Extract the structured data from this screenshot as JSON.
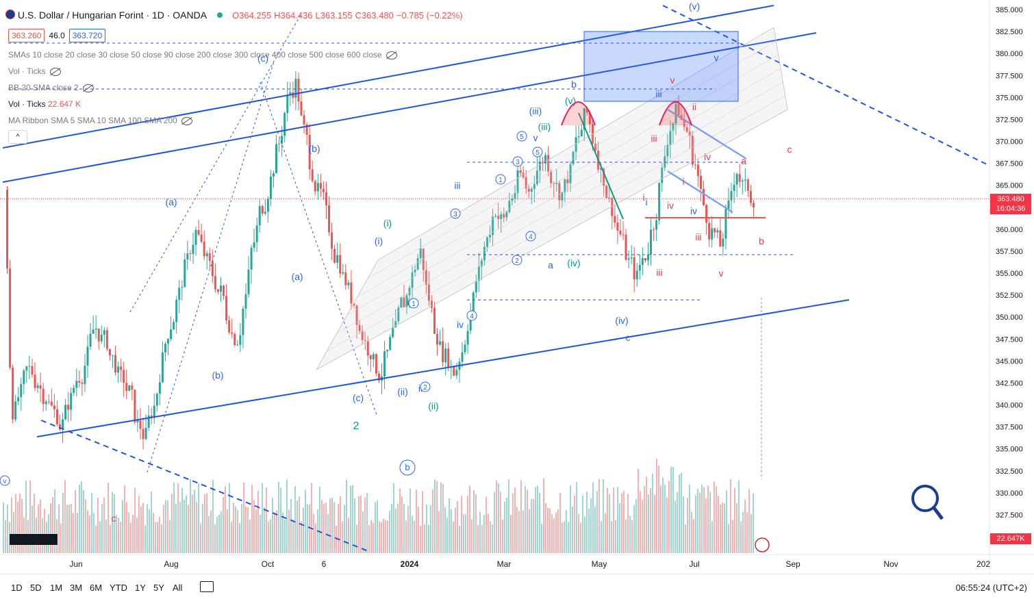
{
  "header": {
    "symbol": "U.S. Dollar / Hungarian Forint · 1D · OANDA",
    "open": "O364.255",
    "high": "H364.436",
    "low": "L363.155",
    "close": "C363.480",
    "change": "−0.785 (−0.22%)",
    "sell": "363.260",
    "spread": "46.0",
    "buy": "363.720"
  },
  "indicators": [
    "SMAs 10 close 20 close 30 close 50 close 90 close 200 close 300 close 400 close 500 close 600 close",
    "Vol · Ticks",
    "BB 20 SMA close 2",
    "Vol · Ticks",
    "MA Ribbon SMA 5 SMA 10 SMA 100 SMA 200"
  ],
  "vol_value": "22.647 K",
  "collapse_label": "^",
  "price_axis": [
    "385.000",
    "382.500",
    "380.000",
    "377.500",
    "375.000",
    "372.500",
    "370.000",
    "367.500",
    "365.000",
    "362.500",
    "360.000",
    "357.500",
    "355.000",
    "352.500",
    "350.000",
    "347.500",
    "345.000",
    "342.500",
    "340.000",
    "337.500",
    "335.000",
    "332.500",
    "330.000",
    "327.500"
  ],
  "current_price": "363.480",
  "countdown": "16:04:36",
  "vol_label": "22.647K",
  "time_axis": [
    "Jun",
    "Aug",
    "Oct",
    "6",
    "2024",
    "Mar",
    "May",
    "Jul",
    "Sep",
    "Nov",
    "202"
  ],
  "timeframes": [
    "1D",
    "5D",
    "1M",
    "3M",
    "6M",
    "YTD",
    "1Y",
    "5Y",
    "All"
  ],
  "clock": "06:55:24 (UTC+2)",
  "colors": {
    "up": "#26a69a",
    "down": "#ef5350",
    "wave_blue": "#2962ff",
    "wave_green": "#089981",
    "wave_red": "#f23645",
    "line_blue": "#1e53e5"
  },
  "wave_labels": [
    {
      "t": "(a)",
      "c": "blue"
    },
    {
      "t": "(b)",
      "c": "blue"
    },
    {
      "t": "(c)",
      "c": "blue"
    },
    {
      "t": "(b)",
      "c": "blue"
    },
    {
      "t": "(a)",
      "c": "blue"
    },
    {
      "t": "(c)",
      "c": "blue"
    },
    {
      "t": "(i)",
      "c": "green"
    },
    {
      "t": "(i)",
      "c": "blue"
    },
    {
      "t": "(ii)",
      "c": "blue"
    },
    {
      "t": "(ii)",
      "c": "green"
    },
    {
      "t": "iii",
      "c": "blue"
    },
    {
      "t": "iv",
      "c": "blue"
    },
    {
      "t": "(iii)",
      "c": "blue"
    },
    {
      "t": "(iii)",
      "c": "green"
    },
    {
      "t": "(v)",
      "c": "green"
    },
    {
      "t": "(iv)",
      "c": "green"
    },
    {
      "t": "(iv)",
      "c": "blue"
    },
    {
      "t": "a",
      "c": "blue"
    },
    {
      "t": "b",
      "c": "blue"
    },
    {
      "t": "c",
      "c": "blue"
    },
    {
      "t": "v",
      "c": "blue"
    },
    {
      "t": "(v)",
      "c": "blue"
    },
    {
      "t": "v",
      "c": "red"
    },
    {
      "t": "iii",
      "c": "blue"
    },
    {
      "t": "ii",
      "c": "red"
    },
    {
      "t": "iii",
      "c": "red"
    },
    {
      "t": "iv",
      "c": "red"
    },
    {
      "t": "i",
      "c": "red"
    },
    {
      "t": "iv",
      "c": "blue"
    },
    {
      "t": "iii",
      "c": "red"
    },
    {
      "t": "v",
      "c": "red"
    },
    {
      "t": "a",
      "c": "red"
    },
    {
      "t": "b",
      "c": "red"
    },
    {
      "t": "c",
      "c": "red"
    },
    {
      "t": "i",
      "c": "red"
    },
    {
      "t": "i",
      "c": "blue"
    },
    {
      "t": "iv",
      "c": "red"
    },
    {
      "t": "iii",
      "c": "red"
    },
    {
      "t": "2",
      "c": "green"
    },
    {
      "t": "c",
      "c": "red"
    },
    {
      "t": "v",
      "c": "blue"
    },
    {
      "t": "i",
      "c": "blue"
    },
    {
      "t": "ii",
      "c": "blue"
    }
  ],
  "circled_labels": [
    "1",
    "2",
    "3",
    "4",
    "5",
    "1",
    "2",
    "3",
    "4",
    "5",
    "b",
    "v"
  ],
  "chart_data": {
    "type": "candlestick",
    "series_open": [
      364.5,
      365.0,
      363.6,
      362.2,
      360.8,
      360.0,
      361.0,
      362.5,
      363.8,
      364.2
    ],
    "series_note": "",
    "x": [
      "Jun",
      "Aug",
      "Oct",
      "6",
      "2024",
      "Mar",
      "May",
      "Jul",
      "Sep",
      "Nov",
      "202"
    ],
    "ylim": [
      325.0,
      386.0
    ],
    "closes": [
      339.5,
      341.2,
      344.0,
      342.6,
      341.0,
      339.2,
      337.8,
      340.6,
      343.4,
      345.6,
      348.8,
      347.4,
      345.2,
      343.0,
      341.4,
      337.6,
      336.4,
      339.8,
      345.0,
      349.2,
      352.6,
      356.4,
      359.6,
      357.2,
      355.0,
      352.8,
      349.4,
      347.6,
      352.4,
      358.6,
      362.8,
      365.6,
      369.8,
      374.6,
      376.4,
      371.2,
      366.6,
      364.0,
      360.4,
      356.8,
      354.2,
      351.6,
      348.0,
      346.2,
      343.6,
      345.8,
      348.4,
      351.8,
      354.6,
      357.4,
      352.2,
      348.0,
      345.4,
      343.8,
      346.2,
      350.6,
      355.0,
      358.8,
      362.4,
      361.0,
      363.8,
      366.2,
      364.2,
      366.8,
      368.2,
      365.8,
      364.0,
      366.4,
      370.6,
      373.2,
      369.4,
      366.0,
      362.6,
      359.4,
      356.2,
      354.4,
      357.0,
      360.8,
      366.4,
      371.6,
      373.8,
      371.2,
      367.4,
      362.8,
      359.6,
      358.2,
      362.4,
      366.8,
      364.6,
      363.5
    ],
    "volume_scale": "Ticks"
  }
}
